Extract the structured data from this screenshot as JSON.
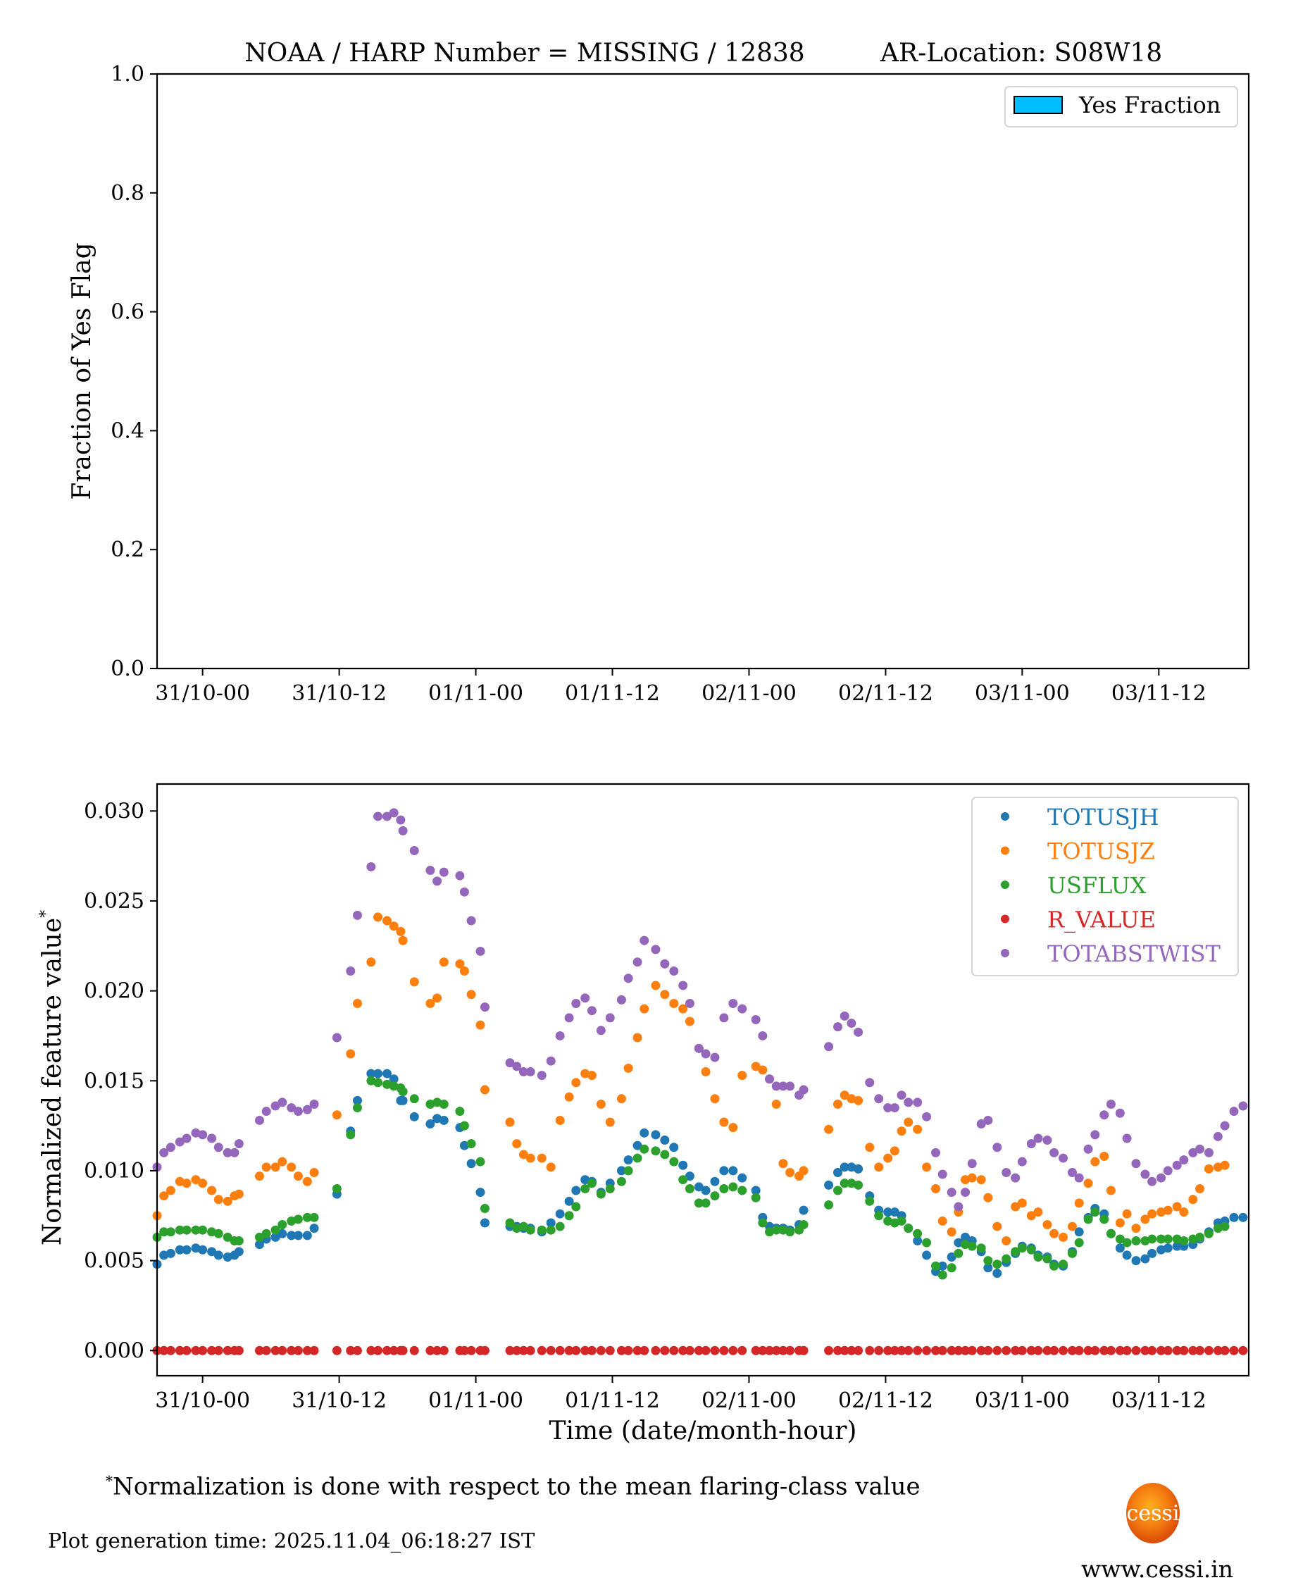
{
  "title": "NOAA / HARP Number = MISSING / 12838",
  "ar_location": "AR-Location: S08W18",
  "footnote": {
    "marker": "*",
    "text": "Normalization is done with respect to the mean flaring-class value"
  },
  "generation_time": "Plot generation time: 2025.11.04_06:18:27 IST",
  "logo": {
    "label": "cessi",
    "url_text": "www.cessi.in"
  },
  "chart_data": [
    {
      "type": "bar",
      "title": "NOAA / HARP Number = MISSING / 12838      AR-Location: S08W18",
      "xlabel": "",
      "ylabel": "Fraction of Yes Flag",
      "ylim": [
        0.0,
        1.0
      ],
      "xlim_hours": [
        -4.0,
        91.9
      ],
      "yticks": [
        "0.0",
        "0.2",
        "0.4",
        "0.6",
        "0.8",
        "1.0"
      ],
      "ytick_values": [
        0.0,
        0.2,
        0.4,
        0.6,
        0.8,
        1.0
      ],
      "xtick_hours": [
        0,
        12,
        24,
        36,
        48,
        60,
        72,
        84
      ],
      "xticks": [
        "31/10-00",
        "31/10-12",
        "01/11-00",
        "01/11-12",
        "02/11-00",
        "02/11-12",
        "03/11-00",
        "03/11-12"
      ],
      "legend": [
        {
          "label": "Yes Fraction",
          "color": "#00bfff"
        }
      ],
      "legend_position": "top-right",
      "values": [],
      "grid": false
    },
    {
      "type": "scatter",
      "title": "",
      "xlabel": "Time (date/month-hour)",
      "ylabel": "Normalized feature value",
      "ylabel_superscript": "*",
      "ylim": [
        -0.0014,
        0.0315
      ],
      "xlim_hours": [
        -4.0,
        91.9
      ],
      "yticks": [
        "0.000",
        "0.005",
        "0.010",
        "0.015",
        "0.020",
        "0.025",
        "0.030"
      ],
      "ytick_values": [
        0.0,
        0.005,
        0.01,
        0.015,
        0.02,
        0.025,
        0.03
      ],
      "xtick_hours": [
        0,
        12,
        24,
        36,
        48,
        60,
        72,
        84
      ],
      "xticks": [
        "31/10-00",
        "31/10-12",
        "01/11-00",
        "01/11-12",
        "02/11-00",
        "02/11-12",
        "03/11-00",
        "03/11-12"
      ],
      "legend_position": "top-right",
      "grid": false,
      "x_hours": [
        -4.0,
        -3.4,
        -2.8,
        -2.0,
        -1.4,
        -0.6,
        0.0,
        0.8,
        1.4,
        2.2,
        2.8,
        3.2,
        5.0,
        5.6,
        6.4,
        7.0,
        7.8,
        8.4,
        9.2,
        9.8,
        11.8,
        13.0,
        13.6,
        14.8,
        15.4,
        16.2,
        16.8,
        17.4,
        17.6,
        18.6,
        20.0,
        20.6,
        21.2,
        22.6,
        23.0,
        23.6,
        24.4,
        24.8,
        27.0,
        27.6,
        28.2,
        28.8,
        29.8,
        30.6,
        31.4,
        32.2,
        32.8,
        33.6,
        34.2,
        35.0,
        35.8,
        36.8,
        37.4,
        38.2,
        38.8,
        39.8,
        40.6,
        41.4,
        42.2,
        42.8,
        43.6,
        44.2,
        45.0,
        45.8,
        46.6,
        47.4,
        48.6,
        49.2,
        49.8,
        50.4,
        51.0,
        51.6,
        52.4,
        52.8,
        55.0,
        55.8,
        56.4,
        57.0,
        57.6,
        58.6,
        59.4,
        60.2,
        60.8,
        61.4,
        62.0,
        62.8,
        63.6,
        64.4,
        65.0,
        65.8,
        66.4,
        67.0,
        67.6,
        68.4,
        69.0,
        69.8,
        70.6,
        71.4,
        72.0,
        72.8,
        73.4,
        74.2,
        74.8,
        75.6,
        76.4,
        77.0,
        77.8,
        78.4,
        79.2,
        79.8,
        80.6,
        81.2,
        82.0,
        82.8,
        83.4,
        84.2,
        84.8,
        85.6,
        86.2,
        87.0,
        87.6,
        88.4,
        89.2,
        89.8,
        90.6,
        91.4
      ],
      "series": [
        {
          "name": "TOTUSJH",
          "color": "#1f77b4",
          "values": [
            0.0048,
            0.0053,
            0.0054,
            0.0056,
            0.0056,
            0.0057,
            0.0056,
            0.0055,
            0.0053,
            0.0052,
            0.0053,
            0.0055,
            0.0059,
            0.0062,
            0.0063,
            0.0065,
            0.0064,
            0.0064,
            0.0064,
            0.0068,
            0.0087,
            0.0122,
            0.0139,
            0.0154,
            0.0154,
            0.0154,
            0.0151,
            0.0139,
            0.0139,
            0.013,
            0.0126,
            0.0129,
            0.0128,
            0.0124,
            0.0114,
            0.0104,
            0.0088,
            0.0071,
            0.0069,
            0.0069,
            0.0068,
            0.0068,
            0.0066,
            0.0071,
            0.0076,
            0.0083,
            0.0089,
            0.0095,
            0.0094,
            0.0088,
            0.0093,
            0.01,
            0.0106,
            0.0114,
            0.0121,
            0.012,
            0.0117,
            0.0113,
            0.0103,
            0.0097,
            0.0091,
            0.0089,
            0.0094,
            0.01,
            0.01,
            0.0096,
            0.0089,
            0.0074,
            0.0069,
            0.0068,
            0.0068,
            0.0067,
            0.007,
            0.0078,
            0.0092,
            0.0099,
            0.0102,
            0.0102,
            0.0101,
            0.0086,
            0.0078,
            0.0077,
            0.0077,
            0.0075,
            0.0068,
            0.0061,
            0.0053,
            0.0044,
            0.0047,
            0.0052,
            0.006,
            0.0063,
            0.0061,
            0.0055,
            0.0046,
            0.0043,
            0.0049,
            0.0054,
            0.0058,
            0.0057,
            0.0053,
            0.0052,
            0.0048,
            0.0047,
            0.0055,
            0.0066,
            0.0074,
            0.0079,
            0.0076,
            0.0065,
            0.0057,
            0.0053,
            0.005,
            0.0051,
            0.0054,
            0.0056,
            0.0057,
            0.0058,
            0.0058,
            0.0059,
            0.0062,
            0.0066,
            0.0071,
            0.0072,
            0.0074,
            0.0074
          ],
          "values_note": "approximate, read from plot"
        },
        {
          "name": "TOTUSJZ",
          "color": "#ff7f0e",
          "values": [
            0.0075,
            0.0086,
            0.0089,
            0.0094,
            0.0093,
            0.0095,
            0.0093,
            0.0089,
            0.0084,
            0.0083,
            0.0086,
            0.0087,
            0.0097,
            0.0102,
            0.0102,
            0.0105,
            0.0102,
            0.0097,
            0.0094,
            0.0099,
            0.0131,
            0.0165,
            0.0193,
            0.0216,
            0.0241,
            0.0239,
            0.0236,
            0.0233,
            0.0228,
            0.0205,
            0.0193,
            0.0196,
            0.0216,
            0.0215,
            0.0211,
            0.0198,
            0.0181,
            0.0145,
            0.0127,
            0.0115,
            0.0109,
            0.0107,
            0.0107,
            0.0102,
            0.0128,
            0.0141,
            0.0149,
            0.0154,
            0.0153,
            0.0137,
            0.0127,
            0.014,
            0.0157,
            0.0174,
            0.019,
            0.0203,
            0.0198,
            0.0193,
            0.019,
            0.0183,
            0.0168,
            0.0155,
            0.014,
            0.0127,
            0.0124,
            0.0153,
            0.0158,
            0.0156,
            0.0151,
            0.0137,
            0.0104,
            0.0099,
            0.0097,
            0.01,
            0.0123,
            0.0137,
            0.0142,
            0.014,
            0.0139,
            0.0113,
            0.0102,
            0.0107,
            0.0111,
            0.0122,
            0.0127,
            0.0123,
            0.0102,
            0.009,
            0.0072,
            0.0066,
            0.0077,
            0.0095,
            0.0096,
            0.0095,
            0.0085,
            0.0069,
            0.0061,
            0.008,
            0.0082,
            0.0075,
            0.0077,
            0.007,
            0.0065,
            0.0063,
            0.0069,
            0.0082,
            0.0093,
            0.0105,
            0.0108,
            0.0089,
            0.0071,
            0.0076,
            0.0068,
            0.0073,
            0.0076,
            0.0077,
            0.0078,
            0.008,
            0.0077,
            0.0084,
            0.009,
            0.0101,
            0.0102,
            0.0103
          ],
          "values_note": "approximate, read from plot"
        },
        {
          "name": "USFLUX",
          "color": "#2ca02c",
          "values": [
            0.0063,
            0.0066,
            0.0066,
            0.0067,
            0.0067,
            0.0067,
            0.0067,
            0.0066,
            0.0065,
            0.0063,
            0.0061,
            0.0061,
            0.0063,
            0.0065,
            0.0067,
            0.007,
            0.0072,
            0.0073,
            0.0074,
            0.0074,
            0.009,
            0.012,
            0.0135,
            0.015,
            0.0149,
            0.0148,
            0.0147,
            0.0146,
            0.0144,
            0.014,
            0.0137,
            0.0138,
            0.0137,
            0.0133,
            0.0125,
            0.0115,
            0.0105,
            0.0079,
            0.0071,
            0.0068,
            0.0069,
            0.0067,
            0.0067,
            0.0067,
            0.0069,
            0.0075,
            0.008,
            0.009,
            0.0093,
            0.0087,
            0.009,
            0.0094,
            0.01,
            0.0107,
            0.0112,
            0.0111,
            0.0109,
            0.0105,
            0.0095,
            0.009,
            0.0082,
            0.0082,
            0.0086,
            0.009,
            0.0091,
            0.0089,
            0.0085,
            0.0071,
            0.0066,
            0.0067,
            0.0067,
            0.0066,
            0.0067,
            0.007,
            0.0081,
            0.0089,
            0.0093,
            0.0093,
            0.0092,
            0.0083,
            0.0075,
            0.0072,
            0.0071,
            0.0072,
            0.0068,
            0.0065,
            0.006,
            0.0047,
            0.0042,
            0.0046,
            0.0054,
            0.0059,
            0.0058,
            0.0057,
            0.005,
            0.0048,
            0.0051,
            0.0055,
            0.0057,
            0.0056,
            0.0052,
            0.0051,
            0.0047,
            0.0048,
            0.0054,
            0.006,
            0.0073,
            0.0077,
            0.0073,
            0.0065,
            0.0062,
            0.006,
            0.0061,
            0.0061,
            0.0062,
            0.0062,
            0.0062,
            0.0062,
            0.0061,
            0.0062,
            0.0063,
            0.0065,
            0.0068,
            0.0069
          ],
          "values_note": "approximate, read from plot"
        },
        {
          "name": "R_VALUE",
          "color": "#d62728",
          "constant_value": 0.0
        },
        {
          "name": "TOTABSTWIST",
          "color": "#9467bd",
          "values": [
            0.0102,
            0.011,
            0.0113,
            0.0116,
            0.0118,
            0.0121,
            0.012,
            0.0118,
            0.0113,
            0.011,
            0.011,
            0.0115,
            0.0128,
            0.0133,
            0.0136,
            0.0138,
            0.0135,
            0.0133,
            0.0134,
            0.0137,
            0.0174,
            0.0211,
            0.0242,
            0.0269,
            0.0297,
            0.0297,
            0.0299,
            0.0295,
            0.0289,
            0.0278,
            0.0267,
            0.0261,
            0.0266,
            0.0264,
            0.0255,
            0.0239,
            0.0222,
            0.0191,
            0.016,
            0.0158,
            0.0155,
            0.0155,
            0.0153,
            0.0161,
            0.0175,
            0.0185,
            0.0193,
            0.0196,
            0.0189,
            0.0178,
            0.0185,
            0.0195,
            0.0207,
            0.0216,
            0.0228,
            0.0223,
            0.0215,
            0.0211,
            0.0203,
            0.0193,
            0.0168,
            0.0165,
            0.0163,
            0.0185,
            0.0193,
            0.019,
            0.0184,
            0.0175,
            0.0151,
            0.0147,
            0.0147,
            0.0147,
            0.0142,
            0.0145,
            0.0169,
            0.018,
            0.0186,
            0.0182,
            0.0177,
            0.0149,
            0.014,
            0.0135,
            0.0135,
            0.0142,
            0.0138,
            0.0138,
            0.013,
            0.011,
            0.0098,
            0.0088,
            0.008,
            0.0088,
            0.0104,
            0.0126,
            0.0128,
            0.0113,
            0.0099,
            0.0096,
            0.0105,
            0.0115,
            0.0118,
            0.0117,
            0.011,
            0.0107,
            0.0099,
            0.0096,
            0.0112,
            0.012,
            0.0131,
            0.0137,
            0.0132,
            0.0118,
            0.0104,
            0.0098,
            0.0094,
            0.0096,
            0.01,
            0.0103,
            0.0106,
            0.011,
            0.0112,
            0.011,
            0.0119,
            0.0125,
            0.0133,
            0.0136
          ],
          "values_note": "approximate, read from plot"
        }
      ]
    }
  ]
}
